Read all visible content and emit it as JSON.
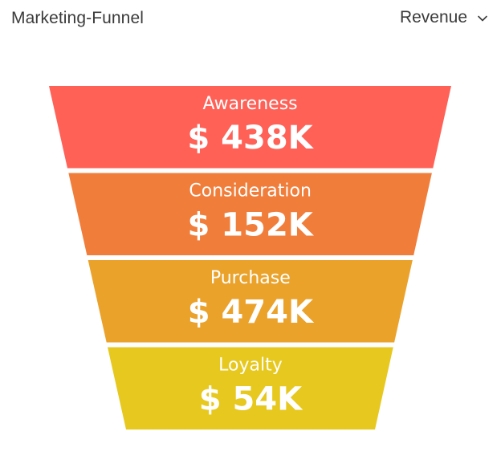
{
  "header": {
    "title": "Marketing-Funnel",
    "metric_selector": {
      "selected": "Revenue",
      "icon": "chevron-down-icon"
    }
  },
  "chart_data": {
    "type": "funnel",
    "stages": [
      {
        "name": "Awareness",
        "value_text": "$ 438K",
        "value": 438,
        "unit": "K",
        "currency": "$",
        "color": "#ff6157"
      },
      {
        "name": "Consideration",
        "value_text": "$ 152K",
        "value": 152,
        "unit": "K",
        "currency": "$",
        "color": "#f17d3a"
      },
      {
        "name": "Purchase",
        "value_text": "$ 474K",
        "value": 474,
        "unit": "K",
        "currency": "$",
        "color": "#eaa22b"
      },
      {
        "name": "Loyalty",
        "value_text": "$ 54K",
        "value": 54,
        "unit": "K",
        "currency": "$",
        "color": "#e7c81e"
      }
    ]
  }
}
